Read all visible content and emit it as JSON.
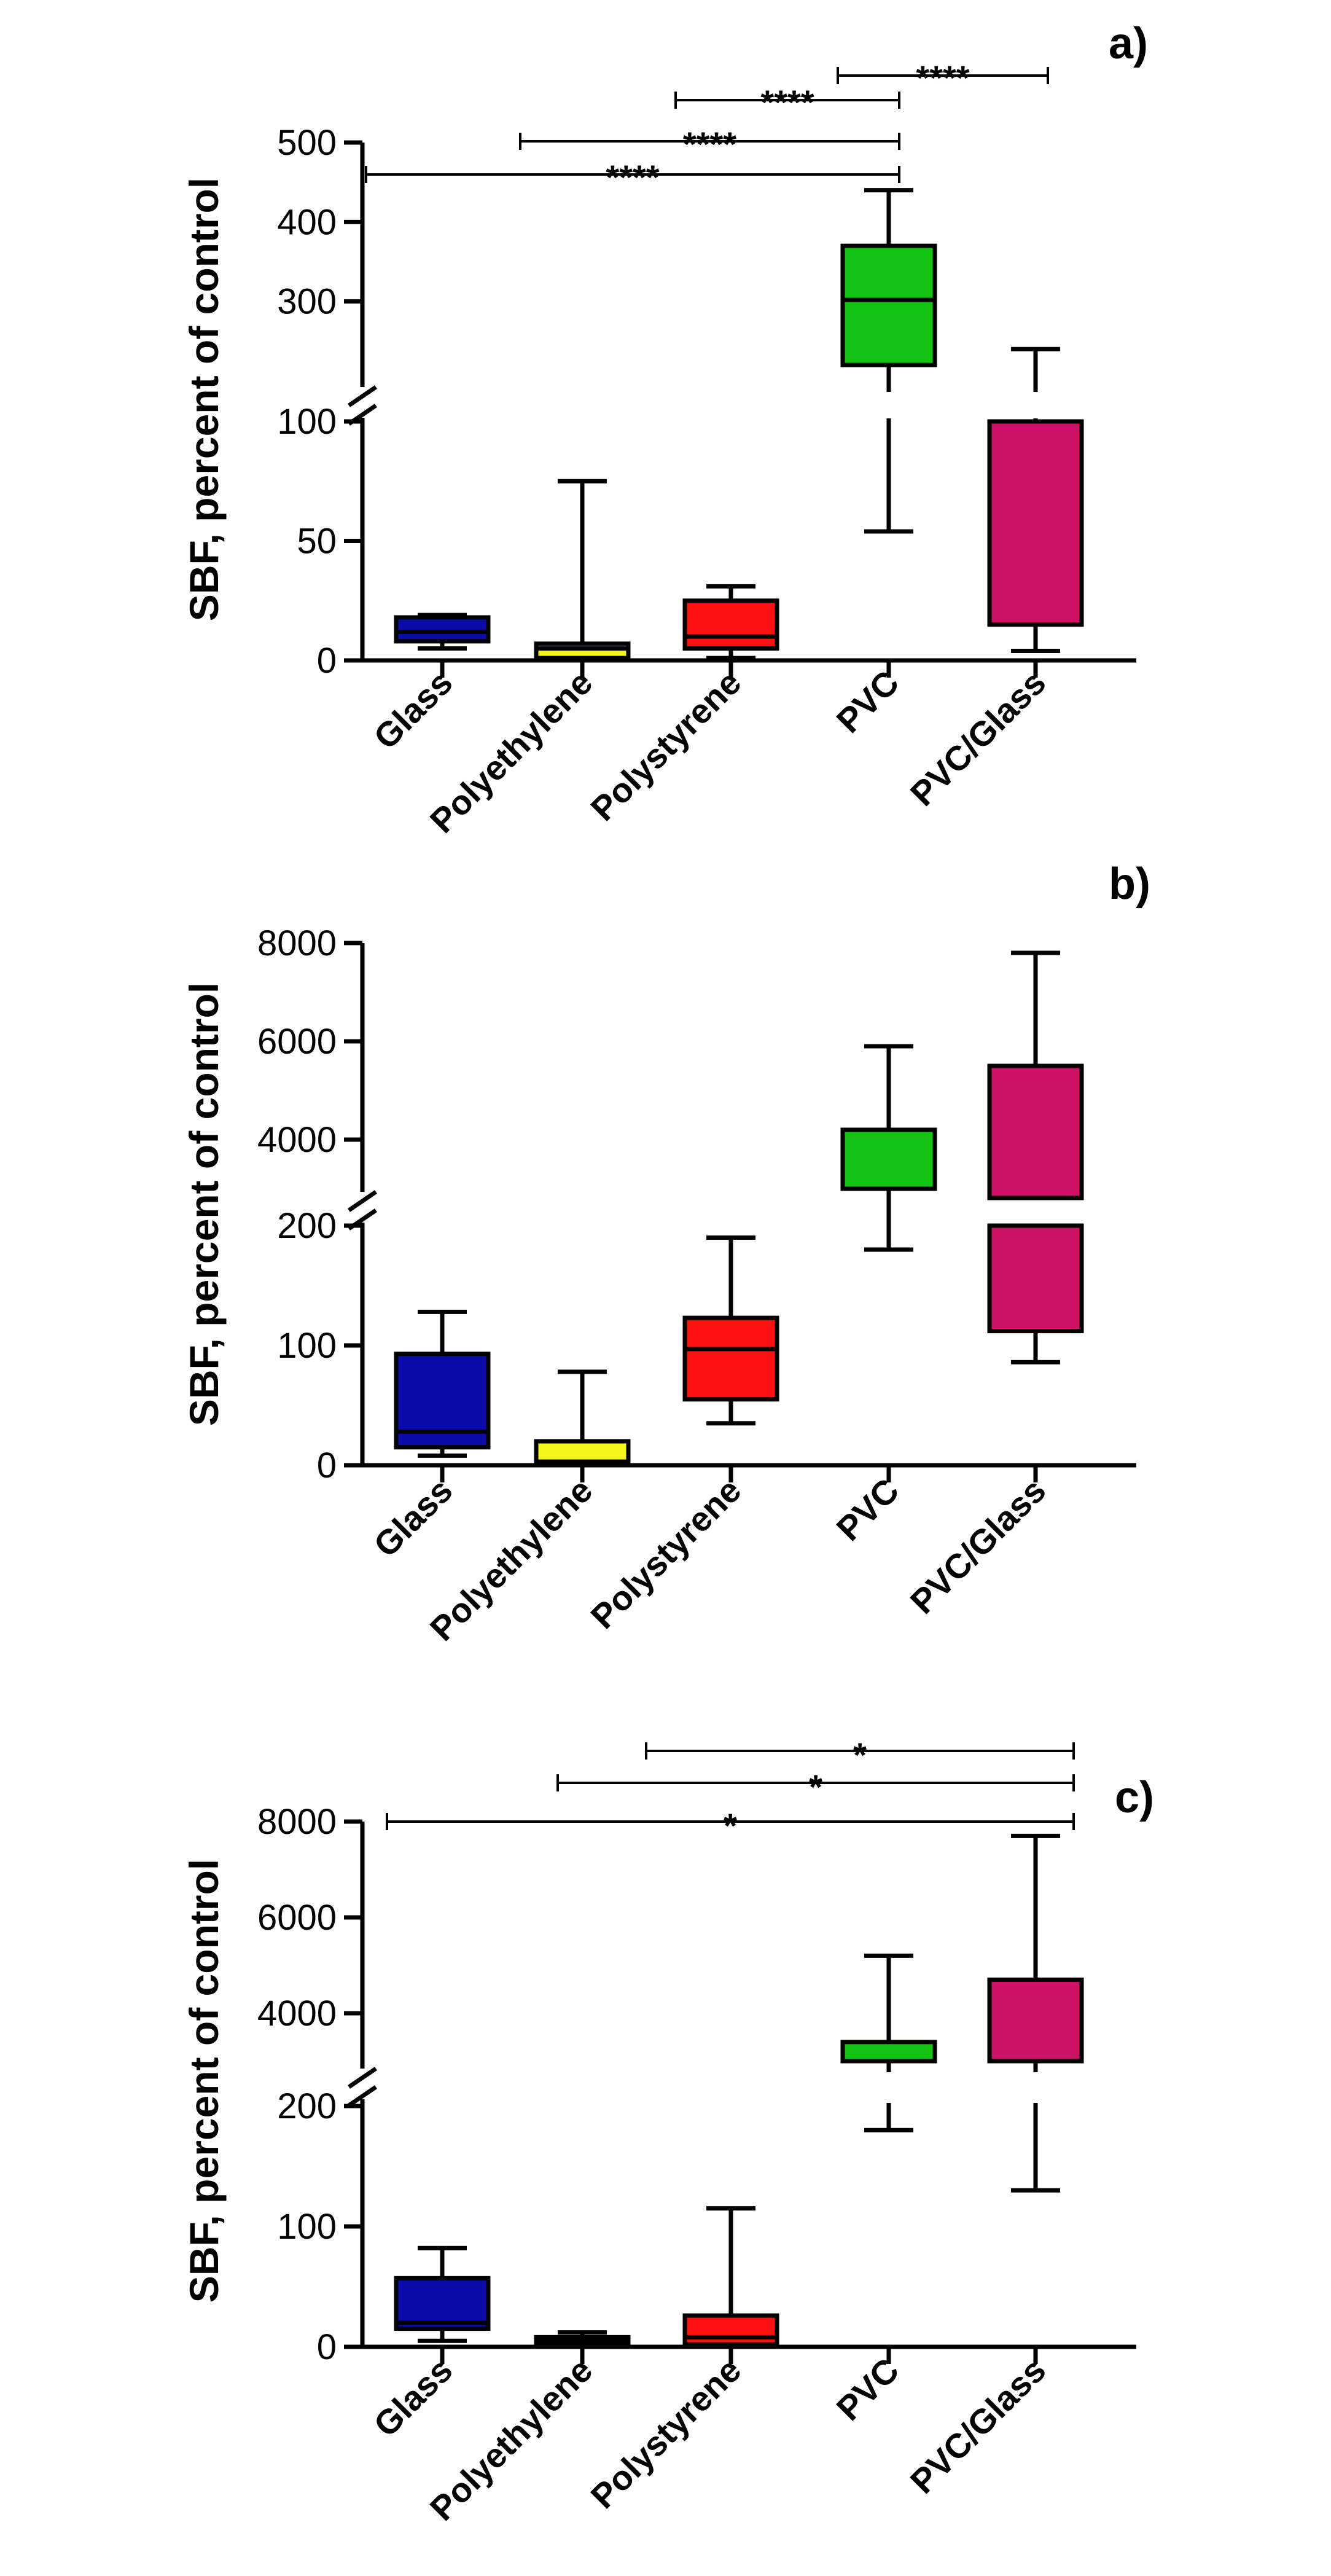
{
  "chart_data": [
    {
      "type": "boxplot",
      "panel_label": "a)",
      "ylabel": "SBF, percent of control",
      "categories": [
        "Glass",
        "Polyethylene",
        "Polystyrene",
        "PVC",
        "PVC/Glass"
      ],
      "colors": [
        "#0b0ba8",
        "#f5f51a",
        "#ff1010",
        "#11c411",
        "#cc1166"
      ],
      "y_axis_break": {
        "lower_range": [
          0,
          100
        ],
        "upper_range": [
          200,
          500
        ]
      },
      "lower_ticks": [
        0,
        50,
        100
      ],
      "upper_ticks": [
        300,
        400,
        500
      ],
      "tick_labels": {
        "lower": [
          "0",
          "50",
          "100"
        ],
        "upper": [
          "300",
          "400",
          "500"
        ]
      },
      "boxes": [
        {
          "category": "Glass",
          "min": 5,
          "q1": 8,
          "median": 12,
          "q3": 18,
          "max": 19
        },
        {
          "category": "Polyethylene",
          "min": 0,
          "q1": 1,
          "median": 5,
          "q3": 7,
          "max": 75
        },
        {
          "category": "Polystyrene",
          "min": 1,
          "q1": 5,
          "median": 10,
          "q3": 25,
          "max": 31
        },
        {
          "category": "PVC",
          "min": 54,
          "q1": 220,
          "median": 302,
          "q3": 370,
          "max": 440
        },
        {
          "category": "PVC/Glass",
          "min": 4,
          "q1": 15,
          "q3": 100,
          "max": 240
        }
      ],
      "significance": [
        {
          "from": "PVC",
          "to": "PVC/Glass",
          "label": "****"
        },
        {
          "from": "Polystyrene",
          "to": "PVC",
          "label": "****"
        },
        {
          "from": "Polyethylene",
          "to": "PVC",
          "label": "****"
        },
        {
          "from": "Glass",
          "to": "PVC",
          "label": "****"
        }
      ]
    },
    {
      "type": "boxplot",
      "panel_label": "b)",
      "ylabel": "SBF, percent of control",
      "categories": [
        "Glass",
        "Polyethylene",
        "Polystyrene",
        "PVC",
        "PVC/Glass"
      ],
      "colors": [
        "#0b0ba8",
        "#f5f51a",
        "#ff1010",
        "#11c411",
        "#cc1166"
      ],
      "y_axis_break": {
        "lower_range": [
          0,
          200
        ],
        "upper_range": [
          3000,
          8000
        ]
      },
      "lower_ticks": [
        0,
        100,
        200
      ],
      "upper_ticks": [
        4000,
        6000,
        8000
      ],
      "tick_labels": {
        "lower": [
          "0",
          "100",
          "200"
        ],
        "upper": [
          "4000",
          "6000",
          "8000"
        ]
      },
      "boxes": [
        {
          "category": "Glass",
          "min": 8,
          "q1": 15,
          "median": 28,
          "q3": 93,
          "max": 128
        },
        {
          "category": "Polyethylene",
          "min": 0,
          "q1": 1,
          "median": 3,
          "q3": 20,
          "max": 78
        },
        {
          "category": "Polystyrene",
          "min": 35,
          "q1": 55,
          "median": 97,
          "q3": 123,
          "max": 190
        },
        {
          "category": "PVC",
          "min": 180,
          "q1": 3000,
          "q3": 4200,
          "max": 5900
        },
        {
          "category": "PVC/Glass",
          "min": 86,
          "q1": 112,
          "q3": 5500,
          "max": 7800
        }
      ],
      "significance": []
    },
    {
      "type": "boxplot",
      "panel_label": "c)",
      "ylabel": "SBF, percent of control",
      "categories": [
        "Glass",
        "Polyethylene",
        "Polystyrene",
        "PVC",
        "PVC/Glass"
      ],
      "colors": [
        "#0b0ba8",
        "#f5f51a",
        "#ff1010",
        "#11c411",
        "#cc1166"
      ],
      "y_axis_break": {
        "lower_range": [
          0,
          200
        ],
        "upper_range": [
          3000,
          8000
        ]
      },
      "lower_ticks": [
        0,
        100,
        200
      ],
      "upper_ticks": [
        4000,
        6000,
        8000
      ],
      "tick_labels": {
        "lower": [
          "0",
          "100",
          "200"
        ],
        "upper": [
          "4000",
          "6000",
          "8000"
        ]
      },
      "boxes": [
        {
          "category": "Glass",
          "min": 5,
          "q1": 15,
          "median": 20,
          "q3": 57,
          "max": 82
        },
        {
          "category": "Polyethylene",
          "min": 0,
          "q1": 2,
          "median": 5,
          "q3": 8,
          "max": 12
        },
        {
          "category": "Polystyrene",
          "min": 0,
          "q1": 2,
          "median": 8,
          "q3": 26,
          "max": 115
        },
        {
          "category": "PVC",
          "min": 180,
          "q1": 3000,
          "q3": 3400,
          "max": 5200
        },
        {
          "category": "PVC/Glass",
          "min": 130,
          "q1": 3000,
          "q3": 4700,
          "max": 7700
        }
      ],
      "significance": [
        {
          "from": "Polystyrene",
          "to": "PVC/Glass",
          "label": "*"
        },
        {
          "from": "Polyethylene",
          "to": "PVC/Glass",
          "label": "*"
        },
        {
          "from": "Glass",
          "to": "PVC/Glass",
          "label": "*"
        }
      ]
    }
  ]
}
